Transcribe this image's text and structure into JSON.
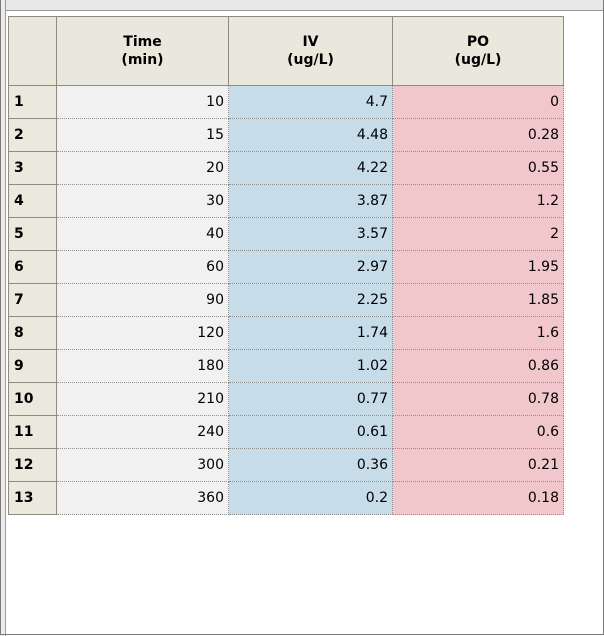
{
  "columns": [
    {
      "label": "Time\n(min)"
    },
    {
      "label": "IV\n(ug/L)"
    },
    {
      "label": "PO\n(ug/L)"
    }
  ],
  "rows": [
    {
      "n": "1",
      "time": "10",
      "iv": "4.7",
      "po": "0"
    },
    {
      "n": "2",
      "time": "15",
      "iv": "4.48",
      "po": "0.28"
    },
    {
      "n": "3",
      "time": "20",
      "iv": "4.22",
      "po": "0.55"
    },
    {
      "n": "4",
      "time": "30",
      "iv": "3.87",
      "po": "1.2"
    },
    {
      "n": "5",
      "time": "40",
      "iv": "3.57",
      "po": "2"
    },
    {
      "n": "6",
      "time": "60",
      "iv": "2.97",
      "po": "1.95"
    },
    {
      "n": "7",
      "time": "90",
      "iv": "2.25",
      "po": "1.85"
    },
    {
      "n": "8",
      "time": "120",
      "iv": "1.74",
      "po": "1.6"
    },
    {
      "n": "9",
      "time": "180",
      "iv": "1.02",
      "po": "0.86"
    },
    {
      "n": "10",
      "time": "210",
      "iv": "0.77",
      "po": "0.78"
    },
    {
      "n": "11",
      "time": "240",
      "iv": "0.61",
      "po": "0.6"
    },
    {
      "n": "12",
      "time": "300",
      "iv": "0.36",
      "po": "0.21"
    },
    {
      "n": "13",
      "time": "360",
      "iv": "0.2",
      "po": "0.18"
    }
  ],
  "colors": {
    "time_cell": "#f1f1f1",
    "iv_cell": "#c6dce9",
    "po_cell": "#f2c7cc",
    "header": "#eae8dc"
  }
}
